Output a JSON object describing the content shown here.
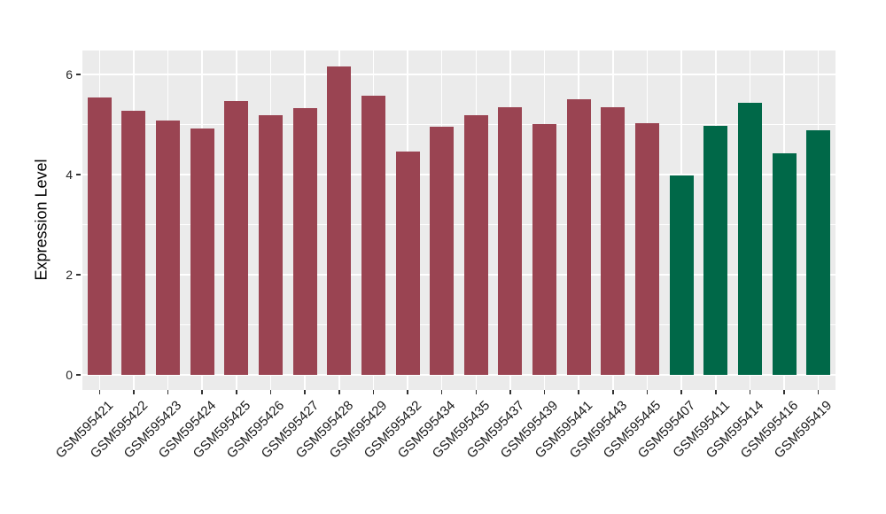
{
  "figure": {
    "background_color": "#FFFFFF",
    "panel_background_color": "#EBEBEB",
    "gridline_color": "#FFFFFF",
    "axis_text_color": "#262626",
    "tick_mark_color": "#333333"
  },
  "chart_data": {
    "type": "bar",
    "title": "",
    "xlabel": "",
    "ylabel": "Expression Level",
    "ylim": [
      0,
      6.5
    ],
    "yticks": [
      0,
      2,
      4,
      6
    ],
    "yticks_minor": [
      1,
      3,
      5
    ],
    "grid": "on",
    "legend": "none",
    "x_label_rotation_deg": 45,
    "categories": [
      "GSM595421",
      "GSM595422",
      "GSM595423",
      "GSM595424",
      "GSM595425",
      "GSM595426",
      "GSM595427",
      "GSM595428",
      "GSM595429",
      "GSM595432",
      "GSM595434",
      "GSM595435",
      "GSM595437",
      "GSM595439",
      "GSM595441",
      "GSM595443",
      "GSM595445",
      "GSM595407",
      "GSM595411",
      "GSM595414",
      "GSM595416",
      "GSM595419"
    ],
    "values": [
      5.55,
      5.28,
      5.08,
      4.92,
      5.48,
      5.18,
      5.33,
      6.17,
      5.57,
      4.47,
      4.96,
      5.19,
      5.34,
      5.01,
      5.51,
      5.35,
      5.03,
      3.98,
      4.98,
      5.44,
      4.42,
      4.88
    ],
    "bar_color_keys": [
      "maroon",
      "maroon",
      "maroon",
      "maroon",
      "maroon",
      "maroon",
      "maroon",
      "maroon",
      "maroon",
      "maroon",
      "maroon",
      "maroon",
      "maroon",
      "maroon",
      "maroon",
      "maroon",
      "maroon",
      "green",
      "green",
      "green",
      "green",
      "green"
    ],
    "colors": {
      "maroon": "#9A4452",
      "green": "#006848"
    }
  }
}
